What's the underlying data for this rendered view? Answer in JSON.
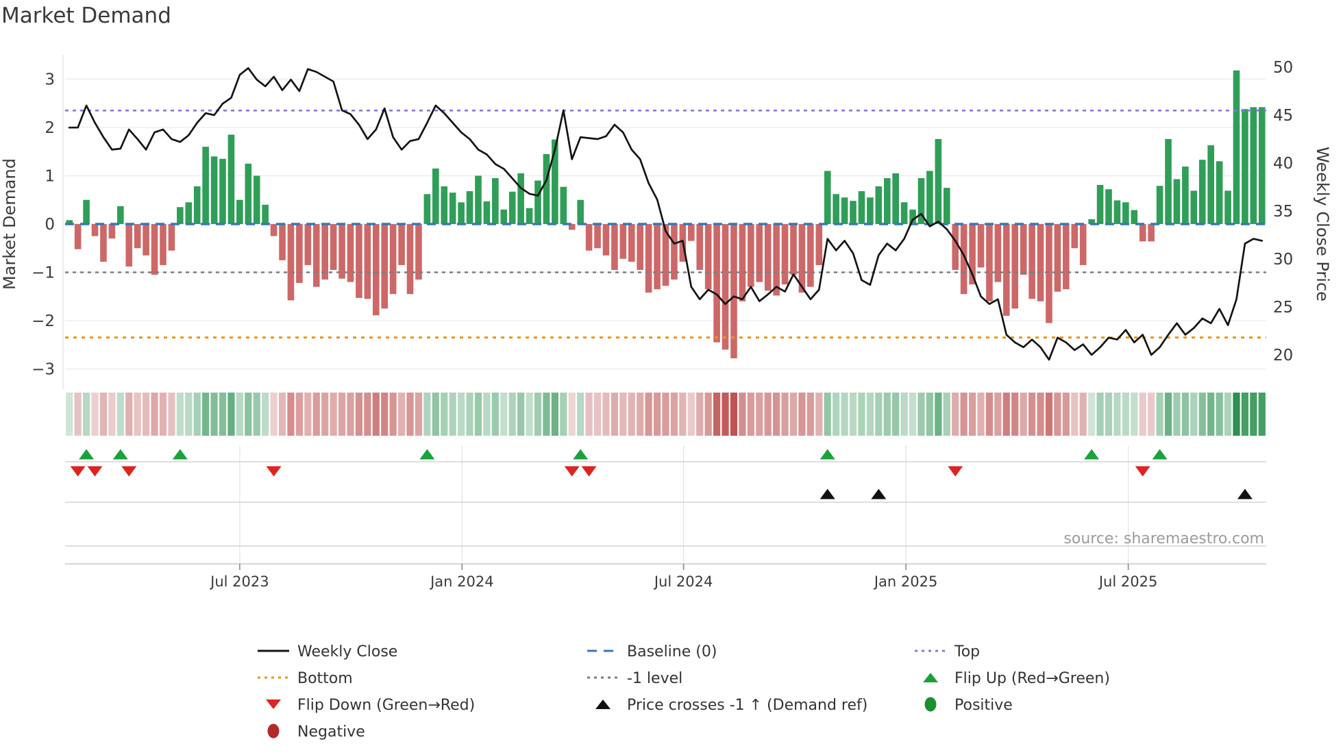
{
  "title": "Market Demand",
  "y_left_label": "Market Demand",
  "y_right_label": "Weekly Close Price",
  "source": "source: sharemaestro.com",
  "colors": {
    "bar_positive": "#2f9e57",
    "bar_negative": "#cd6868",
    "heat_positive": "#2a9150",
    "heat_negative": "#bf4f4f",
    "line": "#141414",
    "baseline": "#3578b8",
    "top_line": "#8478dd",
    "bottom_line": "#f0930e",
    "minus1_line": "#7d7d7d",
    "flip_up": "#1aa23a",
    "flip_down": "#dd2420",
    "price_cross": "#111111",
    "negative_dot": "#b22a2a",
    "positive_dot": "#1e8f2e",
    "grid": "#ededf2",
    "panel_line": "#d4d4d4",
    "panel_grid": "#e4e4e4",
    "axis_line": "#c9c9c9",
    "text": "#3a3a3a",
    "source_text": "#9b9b9b"
  },
  "y_left_ticks": [
    {
      "label": "3",
      "value": 3
    },
    {
      "label": "2",
      "value": 2
    },
    {
      "label": "1",
      "value": 1
    },
    {
      "label": "0",
      "value": 0
    },
    {
      "label": "−1",
      "value": -1
    },
    {
      "label": "−2",
      "value": -2
    },
    {
      "label": "−3",
      "value": -3
    }
  ],
  "y_right_ticks": [
    {
      "label": "50",
      "value": 50
    },
    {
      "label": "45",
      "value": 45
    },
    {
      "label": "40",
      "value": 40
    },
    {
      "label": "35",
      "value": 35
    },
    {
      "label": "30",
      "value": 30
    },
    {
      "label": "25",
      "value": 25
    },
    {
      "label": "20",
      "value": 20
    }
  ],
  "x_ticks": [
    {
      "label": "Jul 2023",
      "week": 20
    },
    {
      "label": "Jan 2024",
      "week": 46.1
    },
    {
      "label": "Jul 2024",
      "week": 72.1
    },
    {
      "label": "Jan 2025",
      "week": 98.2
    },
    {
      "label": "Jul 2025",
      "week": 124.3
    }
  ],
  "ref_lines": {
    "top": {
      "label": "Top",
      "value": 2.35
    },
    "baseline": {
      "label": "Baseline (0)",
      "value": 0
    },
    "minus1": {
      "label": "-1 level",
      "value": -1
    },
    "bottom": {
      "label": "Bottom",
      "value": -2.35
    }
  },
  "chart_data": {
    "type": "bar+line",
    "x_start_date": "2023-02-13",
    "x_step_days": 7,
    "x_tick_labels": [
      "Jul 2023",
      "Jan 2024",
      "Jul 2024",
      "Jan 2025",
      "Jul 2025"
    ],
    "left_axis": {
      "label": "Market Demand",
      "range": [
        -3.5,
        3.5
      ],
      "ticks": [
        3,
        2,
        1,
        0,
        -1,
        -2,
        -3
      ]
    },
    "right_axis": {
      "label": "Weekly Close Price",
      "range": [
        16.4,
        51.3
      ],
      "ticks": [
        50,
        45,
        40,
        35,
        30,
        25,
        20
      ]
    },
    "grid": "horizontal-only",
    "price_cross_level_price": 28.6,
    "series": [
      {
        "name": "Market Demand",
        "type": "bar",
        "axis": "left",
        "values": [
          0.08,
          -0.52,
          0.5,
          -0.25,
          -0.78,
          -0.3,
          0.37,
          -0.88,
          -0.5,
          -0.65,
          -1.05,
          -0.85,
          -0.55,
          0.35,
          0.45,
          0.78,
          1.6,
          1.4,
          1.35,
          1.85,
          0.5,
          1.25,
          1.0,
          0.4,
          -0.25,
          -0.75,
          -1.58,
          -1.22,
          -0.85,
          -1.3,
          -1.15,
          -0.95,
          -1.13,
          -1.2,
          -1.53,
          -1.55,
          -1.89,
          -1.75,
          -1.45,
          -0.85,
          -1.45,
          -1.15,
          0.62,
          1.15,
          0.78,
          0.65,
          0.45,
          0.68,
          1.0,
          0.47,
          0.95,
          0.3,
          0.67,
          1.05,
          0.33,
          0.9,
          1.45,
          1.75,
          0.77,
          -0.12,
          0.5,
          -0.55,
          -0.5,
          -0.65,
          -0.95,
          -0.72,
          -0.78,
          -0.95,
          -1.42,
          -1.35,
          -1.28,
          -1.15,
          -0.78,
          -0.35,
          -0.95,
          -1.35,
          -2.45,
          -2.6,
          -2.78,
          -1.6,
          -1.3,
          -1.2,
          -1.38,
          -1.48,
          -1.25,
          -1.05,
          -1.42,
          -1.3,
          -0.85,
          1.1,
          0.62,
          0.55,
          0.48,
          0.68,
          0.55,
          0.78,
          0.95,
          1.05,
          0.45,
          0.3,
          0.95,
          1.1,
          1.76,
          0.75,
          -0.95,
          -1.45,
          -1.25,
          -0.9,
          -1.6,
          -1.2,
          -1.9,
          -1.75,
          -1.05,
          -1.55,
          -1.6,
          -2.05,
          -1.4,
          -1.35,
          -0.5,
          -0.85,
          0.1,
          0.81,
          0.72,
          0.49,
          0.45,
          0.29,
          -0.36,
          -0.36,
          0.79,
          1.76,
          0.93,
          1.19,
          0.69,
          1.33,
          1.63,
          1.3,
          0.69,
          3.18,
          2.38,
          2.42,
          2.42
        ]
      },
      {
        "name": "Weekly Close",
        "type": "line",
        "axis": "right",
        "values": [
          43.7,
          43.7,
          46.0,
          44.2,
          42.7,
          41.4,
          41.5,
          43.5,
          42.5,
          41.4,
          43.2,
          43.5,
          42.5,
          42.2,
          42.9,
          44.2,
          45.2,
          45.0,
          46.2,
          46.8,
          49.2,
          49.9,
          48.7,
          48.0,
          49.0,
          47.6,
          48.7,
          47.5,
          49.8,
          49.5,
          49.0,
          48.5,
          45.5,
          45.1,
          44.0,
          42.5,
          43.5,
          45.7,
          42.7,
          41.4,
          42.3,
          42.5,
          44.2,
          46.0,
          45.2,
          44.2,
          43.2,
          42.5,
          41.4,
          40.9,
          39.9,
          39.4,
          38.4,
          37.4,
          36.8,
          36.6,
          38.2,
          41.4,
          45.5,
          40.4,
          42.7,
          42.6,
          42.5,
          42.8,
          44.0,
          43.2,
          41.4,
          40.4,
          37.9,
          36.2,
          32.9,
          31.6,
          31.9,
          27.1,
          25.8,
          26.8,
          26.3,
          25.3,
          26.1,
          25.8,
          27.1,
          25.6,
          26.3,
          27.1,
          26.6,
          28.4,
          27.1,
          25.8,
          26.8,
          32.1,
          30.9,
          31.9,
          30.6,
          27.8,
          27.3,
          30.4,
          31.6,
          30.9,
          32.1,
          34.1,
          34.7,
          33.4,
          33.9,
          33.1,
          31.9,
          30.4,
          28.4,
          26.1,
          25.3,
          25.8,
          22.1,
          21.3,
          20.8,
          21.6,
          20.8,
          19.5,
          21.8,
          21.3,
          20.5,
          21.1,
          20.0,
          20.8,
          21.8,
          21.6,
          22.6,
          21.3,
          22.1,
          20.0,
          20.8,
          22.1,
          23.3,
          22.1,
          22.8,
          23.8,
          23.3,
          24.8,
          23.1,
          25.8,
          31.6,
          32.1,
          31.9
        ]
      }
    ]
  },
  "legend": {
    "columns": [
      [
        {
          "id": "weekly-close",
          "label": "Weekly Close",
          "swatch": "line-solid",
          "color": "#141414"
        },
        {
          "id": "bottom",
          "label": "Bottom",
          "swatch": "line-dotted",
          "color": "#f0930e"
        },
        {
          "id": "flip-down",
          "label": "Flip Down (Green→Red)",
          "swatch": "tri-down",
          "color": "#dd2420"
        },
        {
          "id": "negative",
          "label": "Negative",
          "swatch": "circle",
          "color": "#b22a2a"
        }
      ],
      [
        {
          "id": "baseline",
          "label": "Baseline (0)",
          "swatch": "line-dashed",
          "color": "#3578b8"
        },
        {
          "id": "minus1",
          "label": "-1 level",
          "swatch": "line-dotted",
          "color": "#7d7d7d"
        },
        {
          "id": "price-cross",
          "label": "Price crosses -1 ↑ (Demand ref)",
          "swatch": "tri-up",
          "color": "#111111"
        }
      ],
      [
        {
          "id": "top",
          "label": "Top",
          "swatch": "line-dotted",
          "color": "#8478dd"
        },
        {
          "id": "flip-up",
          "label": "Flip Up (Red→Green)",
          "swatch": "tri-up",
          "color": "#1aa23a"
        },
        {
          "id": "positive",
          "label": "Positive",
          "swatch": "circle",
          "color": "#1e8f2e"
        }
      ]
    ]
  }
}
